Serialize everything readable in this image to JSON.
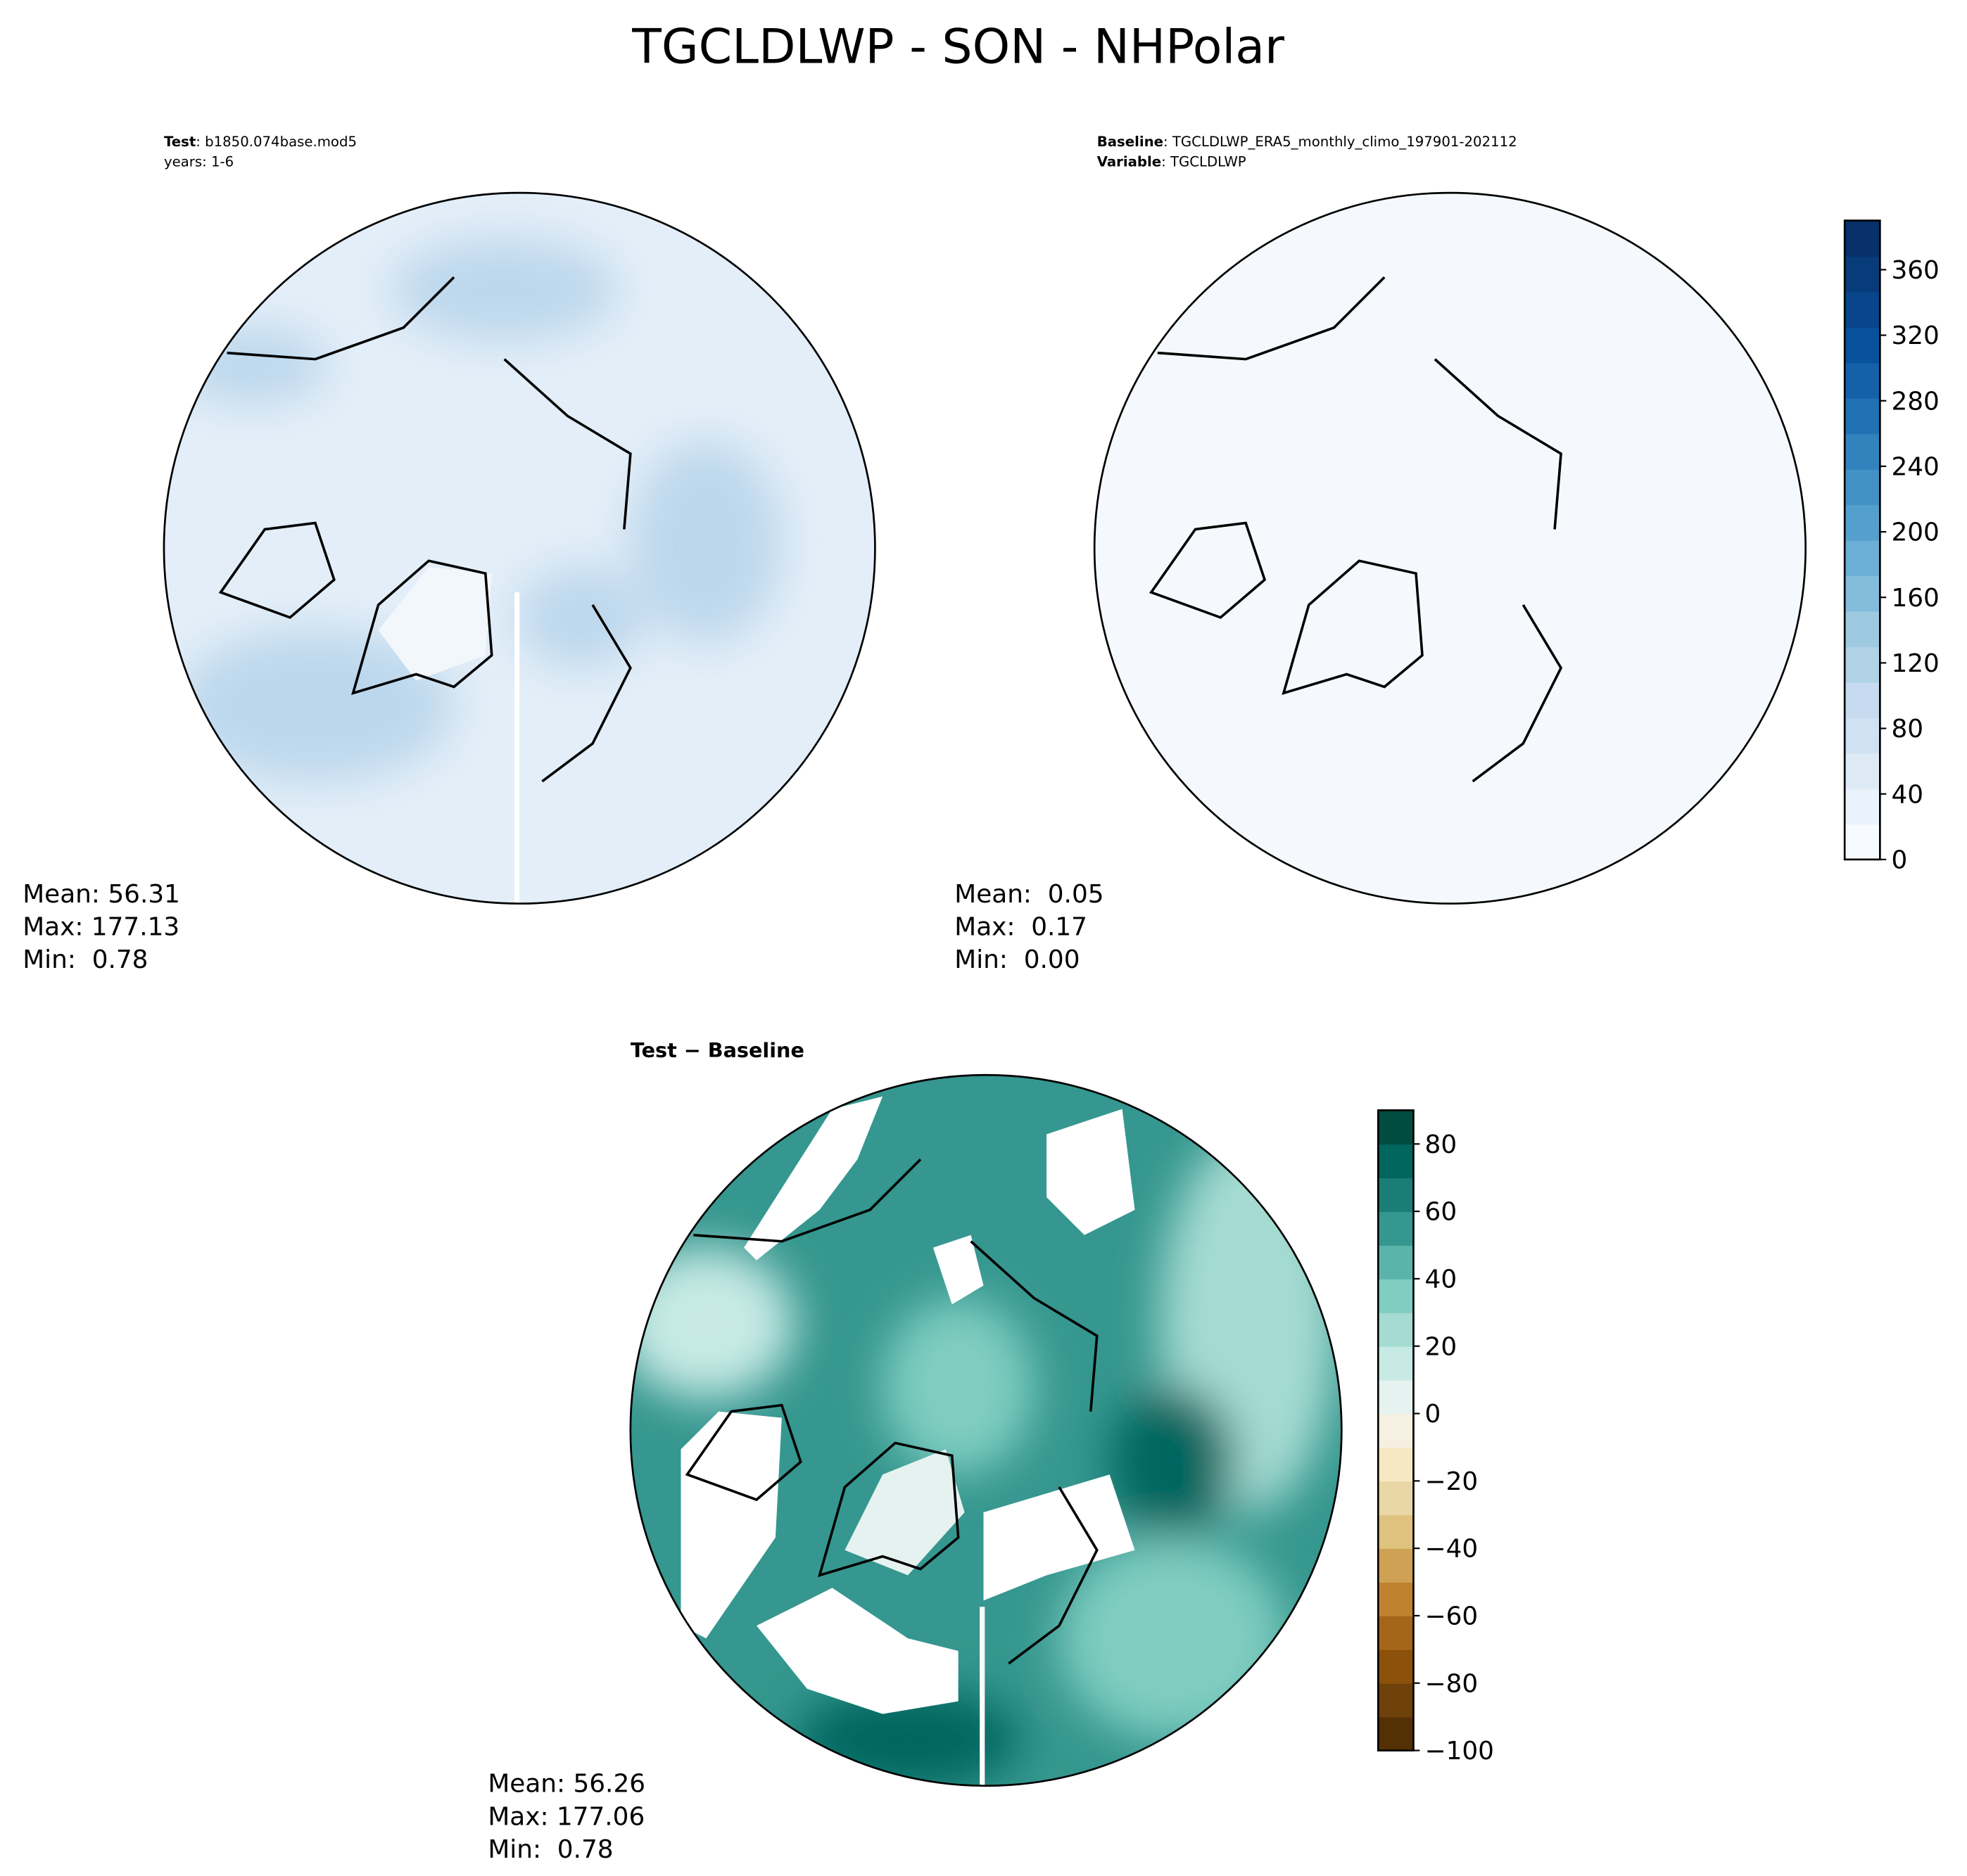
{
  "title": "TGCLDLWP - SON - NHPolar",
  "panels": [
    {
      "header": [
        {
          "key": "Test",
          "text": ": b1850.074base.mod5"
        },
        {
          "text": "years: 1-6"
        }
      ],
      "stats": [
        "Mean: 56.31",
        "Max: 177.13",
        "Min:  0.78"
      ]
    },
    {
      "header": [
        {
          "key": "Baseline",
          "text": ": TGCLDLWP_ERA5_monthly_climo_197901-202112"
        },
        {
          "key": "Variable",
          "text": ": TGCLDLWP"
        }
      ],
      "stats": [
        "Mean:  0.05",
        "Max:  0.17",
        "Min:  0.00"
      ]
    },
    {
      "header": [
        {
          "key": "Test − Baseline"
        }
      ],
      "stats": [
        "Mean: 56.26",
        "Max: 177.06",
        "Min:  0.78"
      ]
    }
  ],
  "colorbars": [
    {
      "lim": [
        0,
        390
      ],
      "ticks": [
        0,
        40,
        80,
        120,
        160,
        200,
        240,
        280,
        320,
        360
      ],
      "colors": [
        "#f7fbff",
        "#eaf3fb",
        "#deebf7",
        "#cfe1f2",
        "#c6dbef",
        "#b1d2e7",
        "#9ecae1",
        "#84bcdb",
        "#6baed6",
        "#549fcd",
        "#4292c6",
        "#3282be",
        "#2171b5",
        "#1461a8",
        "#08519c",
        "#08458a",
        "#083b7a",
        "#08306b"
      ]
    },
    {
      "lim": [
        -100,
        90
      ],
      "ticks": [
        {
          "value": -100,
          "label": "−100"
        },
        {
          "value": -80,
          "label": "−80"
        },
        {
          "value": -60,
          "label": "−60"
        },
        {
          "value": -40,
          "label": "−40"
        },
        {
          "value": -20,
          "label": "−20"
        },
        0,
        20,
        40,
        60,
        80
      ],
      "colors": [
        "#543005",
        "#6e400a",
        "#8c510a",
        "#a6661a",
        "#bf812d",
        "#cfa155",
        "#dfc27d",
        "#ead7a6",
        "#f6e8c3",
        "#f5f0e1",
        "#e6f2f0",
        "#c7eae5",
        "#a5dbd2",
        "#80cdc1",
        "#5ab4a9",
        "#35978f",
        "#1a7e76",
        "#01665e",
        "#004d40"
      ]
    }
  ]
}
